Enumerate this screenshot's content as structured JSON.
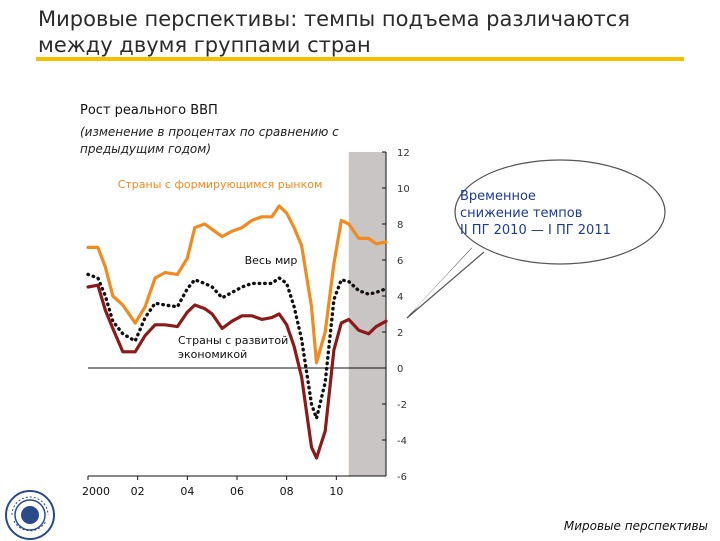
{
  "slide": {
    "title_lines": [
      "Мировые перспективы: темпы подъема различаются",
      "между двумя группами стран"
    ],
    "footer": "Мировые перспективы",
    "logo": "imf-seal-icon",
    "accent_color": "#f2c200"
  },
  "callout": {
    "lines": [
      "Временное",
      "снижение темпов",
      "II ПГ 2010 — I ПГ 2011"
    ]
  },
  "chart_data": {
    "type": "line",
    "title": "Рост реального ВВП",
    "subtitle": "(изменение в процентах по сравнению с предыдущим годом)",
    "ylim": [
      -6,
      12
    ],
    "y_ticks": [
      12,
      10,
      8,
      6,
      4,
      2,
      0,
      -2,
      -4,
      -6
    ],
    "x_range": [
      2000,
      2012
    ],
    "x_ticks": [
      2000,
      2002,
      2004,
      2006,
      2008,
      2010
    ],
    "x_tick_labels": [
      "2000",
      "02",
      "04",
      "06",
      "08",
      "10"
    ],
    "shaded_region": [
      2010.5,
      2012
    ],
    "shaded_color": "#c9c5c4",
    "zero_line": true,
    "series": [
      {
        "name": "Страны с формирующимся рынком",
        "color": "#f18a1f",
        "dash": "solid",
        "points": [
          [
            2000.0,
            6.7
          ],
          [
            2000.4,
            6.7
          ],
          [
            2000.7,
            5.6
          ],
          [
            2001.0,
            4.0
          ],
          [
            2001.4,
            3.5
          ],
          [
            2001.9,
            2.5
          ],
          [
            2002.3,
            3.4
          ],
          [
            2002.7,
            5.0
          ],
          [
            2003.1,
            5.3
          ],
          [
            2003.6,
            5.2
          ],
          [
            2004.0,
            6.1
          ],
          [
            2004.3,
            7.8
          ],
          [
            2004.7,
            8.0
          ],
          [
            2005.0,
            7.7
          ],
          [
            2005.4,
            7.3
          ],
          [
            2005.8,
            7.6
          ],
          [
            2006.2,
            7.8
          ],
          [
            2006.6,
            8.2
          ],
          [
            2007.0,
            8.4
          ],
          [
            2007.4,
            8.4
          ],
          [
            2007.7,
            9.0
          ],
          [
            2008.0,
            8.6
          ],
          [
            2008.3,
            7.8
          ],
          [
            2008.6,
            6.8
          ],
          [
            2009.0,
            3.4
          ],
          [
            2009.2,
            0.3
          ],
          [
            2009.55,
            2.0
          ],
          [
            2009.9,
            5.8
          ],
          [
            2010.2,
            8.2
          ],
          [
            2010.5,
            8.0
          ],
          [
            2010.9,
            7.2
          ],
          [
            2011.3,
            7.2
          ],
          [
            2011.6,
            6.9
          ],
          [
            2012.0,
            7.0
          ]
        ]
      },
      {
        "name": "Весь мир",
        "color": "#111111",
        "dash": "dotted",
        "points": [
          [
            2000.0,
            5.2
          ],
          [
            2000.4,
            5.0
          ],
          [
            2000.7,
            4.0
          ],
          [
            2001.0,
            2.6
          ],
          [
            2001.4,
            1.9
          ],
          [
            2001.9,
            1.5
          ],
          [
            2002.3,
            2.8
          ],
          [
            2002.7,
            3.6
          ],
          [
            2003.1,
            3.5
          ],
          [
            2003.6,
            3.4
          ],
          [
            2004.0,
            4.4
          ],
          [
            2004.3,
            4.9
          ],
          [
            2004.7,
            4.7
          ],
          [
            2005.0,
            4.5
          ],
          [
            2005.4,
            3.9
          ],
          [
            2005.8,
            4.2
          ],
          [
            2006.2,
            4.5
          ],
          [
            2006.6,
            4.7
          ],
          [
            2007.0,
            4.7
          ],
          [
            2007.4,
            4.7
          ],
          [
            2007.7,
            5.0
          ],
          [
            2008.0,
            4.7
          ],
          [
            2008.3,
            3.4
          ],
          [
            2008.6,
            1.6
          ],
          [
            2009.0,
            -2.0
          ],
          [
            2009.2,
            -2.8
          ],
          [
            2009.55,
            -0.8
          ],
          [
            2009.9,
            3.8
          ],
          [
            2010.2,
            4.9
          ],
          [
            2010.5,
            4.8
          ],
          [
            2010.9,
            4.3
          ],
          [
            2011.3,
            4.1
          ],
          [
            2011.6,
            4.2
          ],
          [
            2012.0,
            4.4
          ]
        ]
      },
      {
        "name": "Страны с развитой экономикой",
        "color": "#8b1a1a",
        "dash": "solid",
        "points": [
          [
            2000.0,
            4.5
          ],
          [
            2000.4,
            4.6
          ],
          [
            2000.7,
            3.2
          ],
          [
            2001.0,
            2.2
          ],
          [
            2001.4,
            0.9
          ],
          [
            2001.9,
            0.9
          ],
          [
            2002.3,
            1.8
          ],
          [
            2002.7,
            2.4
          ],
          [
            2003.1,
            2.4
          ],
          [
            2003.6,
            2.3
          ],
          [
            2004.0,
            3.1
          ],
          [
            2004.3,
            3.5
          ],
          [
            2004.7,
            3.3
          ],
          [
            2005.0,
            3.0
          ],
          [
            2005.4,
            2.2
          ],
          [
            2005.8,
            2.6
          ],
          [
            2006.2,
            2.9
          ],
          [
            2006.6,
            2.9
          ],
          [
            2007.0,
            2.7
          ],
          [
            2007.4,
            2.8
          ],
          [
            2007.7,
            3.0
          ],
          [
            2008.0,
            2.4
          ],
          [
            2008.3,
            1.2
          ],
          [
            2008.6,
            -0.5
          ],
          [
            2009.0,
            -4.4
          ],
          [
            2009.2,
            -5.0
          ],
          [
            2009.55,
            -3.5
          ],
          [
            2009.9,
            1.0
          ],
          [
            2010.2,
            2.5
          ],
          [
            2010.5,
            2.7
          ],
          [
            2010.9,
            2.1
          ],
          [
            2011.3,
            1.9
          ],
          [
            2011.6,
            2.3
          ],
          [
            2012.0,
            2.6
          ]
        ]
      }
    ],
    "annotations": [
      {
        "text": "Страны с формирующимся рынком",
        "series": 0
      },
      {
        "text": "Весь мир",
        "series": 1
      },
      {
        "text": "Страны с развитой экономикой",
        "series": 2
      }
    ]
  }
}
